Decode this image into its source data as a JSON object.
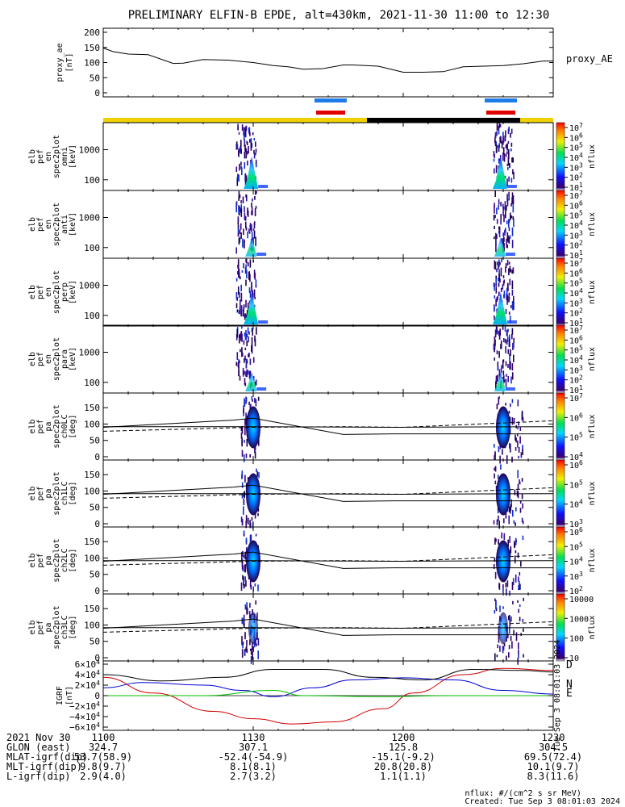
{
  "title": "PRELIMINARY ELFIN-B EPDE, alt=430km, 2021-11-30 11:00 to 12:30",
  "colors": {
    "orbit_bar_sunlit": "#f0d000",
    "orbit_bar_shadow": "#000000",
    "science_zone_blue": "#1e7ce8",
    "science_zone_red": "#e00000",
    "igrf_D": "#d00000",
    "igrf_N": "#0000d0",
    "igrf_E": "#00c000",
    "igrf_total": "#000000"
  },
  "proxy_ae": {
    "ylabel": [
      "proxy_ae",
      "[nT]"
    ],
    "legend": "proxy_AE",
    "yticks": [
      "200",
      "150",
      "100",
      "50",
      "0"
    ]
  },
  "spectrogram_panels": [
    {
      "ylabel": [
        "elb",
        "pef",
        "en",
        "spec2plot",
        "omni",
        "[keV]"
      ],
      "yticks": [
        "1000",
        "100"
      ],
      "cbar_ticks": [
        "10^7",
        "10^6",
        "10^5",
        "10^4",
        "10^3",
        "10^2",
        "10^1"
      ],
      "cbar_unit": "nflux"
    },
    {
      "ylabel": [
        "elb",
        "pef",
        "en",
        "spec2plot",
        "anti",
        "[keV]"
      ],
      "yticks": [
        "1000",
        "100"
      ],
      "cbar_ticks": [
        "10^7",
        "10^6",
        "10^5",
        "10^4",
        "10^3",
        "10^2",
        "10^1"
      ],
      "cbar_unit": "nflux"
    },
    {
      "ylabel": [
        "elb",
        "pef",
        "en",
        "spec2plot",
        "perp",
        "[keV]"
      ],
      "yticks": [
        "1000",
        "100"
      ],
      "cbar_ticks": [
        "10^7",
        "10^6",
        "10^5",
        "10^4",
        "10^3",
        "10^2",
        "10^1"
      ],
      "cbar_unit": "nflux"
    },
    {
      "ylabel": [
        "elb",
        "pef",
        "en",
        "spec2plot",
        "para",
        "[keV]"
      ],
      "yticks": [
        "1000",
        "100"
      ],
      "cbar_ticks": [
        "10^7",
        "10^6",
        "10^5",
        "10^4",
        "10^3",
        "10^2",
        "10^1"
      ],
      "cbar_unit": "nflux"
    }
  ],
  "pitch_panels": [
    {
      "ylabel": [
        "elb",
        "pef",
        "pa",
        "spec2plot",
        "ch0LC",
        "[deg]"
      ],
      "yticks": [
        "150",
        "100",
        "50",
        "0"
      ],
      "cbar_ticks": [
        "10^7",
        "10^6",
        "10^5",
        "10^4"
      ],
      "cbar_unit": "nflux"
    },
    {
      "ylabel": [
        "elb",
        "pef",
        "pa",
        "spec2plot",
        "ch1LC",
        "[deg]"
      ],
      "yticks": [
        "150",
        "100",
        "50",
        "0"
      ],
      "cbar_ticks": [
        "10^6",
        "10^5",
        "10^4",
        "10^3"
      ],
      "cbar_unit": "nflux"
    },
    {
      "ylabel": [
        "elb",
        "pef",
        "pa",
        "spec2plot",
        "ch2LC",
        "[deg]"
      ],
      "yticks": [
        "150",
        "100",
        "50",
        "0"
      ],
      "cbar_ticks": [
        "10^6",
        "10^5",
        "10^4",
        "10^3",
        "10^2"
      ],
      "cbar_unit": "nflux"
    },
    {
      "ylabel": [
        "elb",
        "pef",
        "pa",
        "spec2plot",
        "ch3LC",
        "[deg]"
      ],
      "yticks": [
        "150",
        "100",
        "50",
        "0"
      ],
      "cbar_ticks": [
        "10000",
        "1000",
        "100",
        "10"
      ],
      "cbar_unit": "nflux"
    }
  ],
  "igrf_panel": {
    "ylabel": [
      "IGRF",
      "[nT]"
    ],
    "yticks": [
      "6×10^4",
      "4×10^4",
      "2×10^4",
      "0",
      "−2×10^4",
      "−4×10^4",
      "−6×10^4"
    ],
    "legend": [
      "D",
      "N",
      "E"
    ],
    "side_stamp": "Tue Sep  3 08:01:03 2024"
  },
  "footer": {
    "rows": [
      {
        "label": "2021 Nov 30",
        "values": [
          "1100",
          "1130",
          "1200",
          "1230"
        ]
      },
      {
        "label": "GLON (east)",
        "values": [
          "324.7",
          "307.1",
          "125.8",
          "304.5"
        ]
      },
      {
        "label": "MLAT-igrf(dip)",
        "values": [
          "53.7(58.9)",
          "-52.4(-54.9)",
          "-15.1(-9.2)",
          "69.5(72.4)"
        ]
      },
      {
        "label": "MLT-igrf(dip)",
        "values": [
          "9.8(9.7)",
          "8.1(8.1)",
          "20.8(20.8)",
          "10.1(9.7)"
        ]
      },
      {
        "label": "L-igrf(dip)",
        "values": [
          "2.9(4.0)",
          "2.7(3.2)",
          "1.1(1.1)",
          "8.3(11.6)"
        ]
      }
    ],
    "note_units": "nflux: #/(cm^2 s sr MeV)",
    "note_created": "Created: Tue Sep  3 08:01:03 2024"
  },
  "chart_data": [
    {
      "type": "line",
      "name": "proxy_AE",
      "x_label": "UT (HHMM)",
      "xlim": [
        "11:00",
        "12:30"
      ],
      "ylim": [
        0,
        200
      ],
      "x_minutes": [
        0,
        2,
        5,
        9,
        14,
        16,
        20,
        25,
        30,
        34,
        37,
        40,
        44,
        48,
        50,
        55,
        60,
        64,
        68,
        72,
        76,
        80,
        84,
        88,
        90
      ],
      "y": [
        148,
        136,
        128,
        126,
        97,
        98,
        110,
        108,
        100,
        90,
        86,
        78,
        80,
        92,
        92,
        88,
        68,
        68,
        70,
        86,
        88,
        90,
        96,
        105,
        105
      ]
    },
    {
      "type": "heatmap",
      "description_units": "energy [keV] vs UT, nflux color",
      "ylim_keV": [
        50,
        7000
      ],
      "active_intervals_min": [
        [
          26.5,
          30.5
        ],
        [
          78,
          82
        ]
      ]
    },
    {
      "type": "line",
      "name": "IGRF",
      "ylim": [
        -60000,
        60000
      ],
      "series": [
        {
          "name": "D",
          "x_minutes": [
            0,
            10,
            22,
            30,
            38,
            46,
            56,
            62,
            72,
            80,
            90
          ],
          "y": [
            35000,
            5000,
            -30000,
            -44000,
            -54000,
            -50000,
            -25000,
            5000,
            40000,
            52000,
            48000
          ]
        },
        {
          "name": "N",
          "x_minutes": [
            0,
            8,
            20,
            28,
            34,
            42,
            50,
            60,
            70,
            80,
            90
          ],
          "y": [
            15000,
            25000,
            20000,
            10000,
            -2000,
            15000,
            30000,
            34000,
            30000,
            10000,
            3000
          ]
        },
        {
          "name": "E",
          "x_minutes": [
            0,
            20,
            34,
            40,
            55,
            70,
            90
          ],
          "y": [
            0,
            0,
            10000,
            0,
            -2000,
            0,
            0
          ]
        },
        {
          "x_minutes": [
            0,
            12,
            24,
            34,
            44,
            54,
            64,
            74,
            84,
            90
          ],
          "y": [
            40000,
            28000,
            35000,
            50000,
            50000,
            35000,
            30000,
            50000,
            48000,
            45000
          ]
        }
      ]
    }
  ]
}
